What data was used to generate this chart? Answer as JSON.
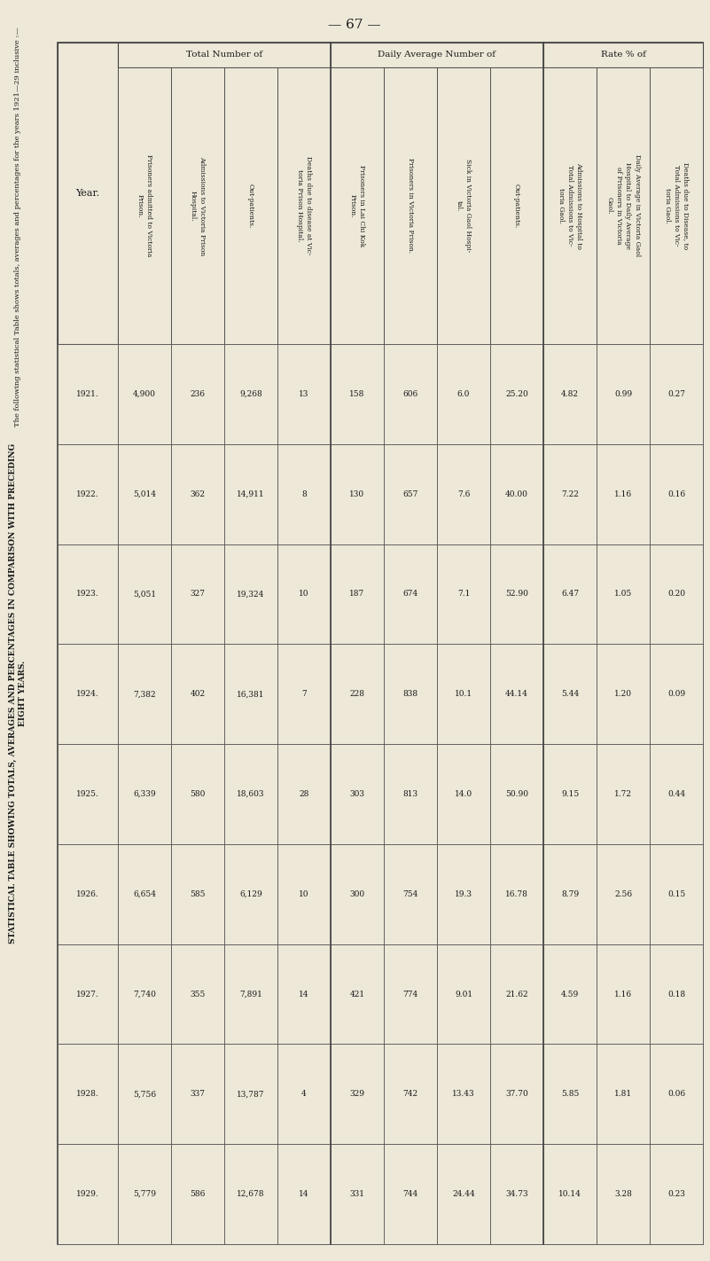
{
  "page_number": "— 67 —",
  "left_label_top": "The following statistical Table shows totals, averages and percentages for the years 1921—29 inclusive :—",
  "left_label_bottom": "STATISTICAL TABLE SHOWING TOTALS, AVERAGES AND PERCENTAGES IN COMPARISON WITH PRECEDING\nEIGHT YEARS.",
  "years": [
    "1921.",
    "1922.",
    "1923.",
    "1924.",
    "1925.",
    "1926.",
    "1927.",
    "1928.",
    "1929."
  ],
  "col_groups": [
    {
      "group_label": "Total Number of",
      "columns": [
        {
          "header": "Prisoners admitted to Victoria\nPrison.",
          "values": [
            "4,900",
            "5,014",
            "5,051",
            "7,382",
            "6,339",
            "6,654",
            "7,740",
            "5,756",
            "5,779"
          ]
        },
        {
          "header": "Admissions to Victoria Prison\nHospital.",
          "values": [
            "236",
            "362",
            "327",
            "402",
            "580",
            "585",
            "355",
            "337",
            "586"
          ]
        },
        {
          "header": "Out-patients.",
          "values": [
            "9,268",
            "14,911",
            "19,324",
            "16,381",
            "18,603",
            "6,129",
            "7,891",
            "13,787",
            "12,678"
          ]
        },
        {
          "header": "Deaths due to disease at Vic-\ntoria Prison Hospital.",
          "values": [
            "13",
            "8",
            "10",
            "7",
            "28",
            "10",
            "14",
            "4",
            "14"
          ]
        }
      ]
    },
    {
      "group_label": "Daily Average Number of",
      "columns": [
        {
          "header": "Prisoners in Lai Chi Kok\nPrison.",
          "values": [
            "158",
            "130",
            "187",
            "228",
            "303",
            "300",
            "421",
            "329",
            "331"
          ]
        },
        {
          "header": "Prisoners in Victoria Prison.",
          "values": [
            "606",
            "657",
            "674",
            "838",
            "813",
            "754",
            "774",
            "742",
            "744"
          ]
        },
        {
          "header": "Sick in Victoria Gaol Hospi-\ntal.",
          "values": [
            "6.0",
            "7.6",
            "7.1",
            "10.1",
            "14.0",
            "19.3",
            "9.01",
            "13.43",
            "24.44"
          ]
        },
        {
          "header": "Out-patients.",
          "values": [
            "25.20",
            "40.00",
            "52.90",
            "44.14",
            "50.90",
            "16.78",
            "21.62",
            "37.70",
            "34.73"
          ]
        }
      ]
    },
    {
      "group_label": "Rate % of",
      "columns": [
        {
          "header": "Admissions to Hospital to\nTotal Admissions to Vic-\ntoria Gaol.",
          "values": [
            "4.82",
            "7.22",
            "6.47",
            "5.44",
            "9.15",
            "8.79",
            "4.59",
            "5.85",
            "10.14"
          ]
        },
        {
          "header": "Daily Average in Victoria Gaol\nHospital to Daily Average\nof Prisoners in Victoria\nGaol.",
          "values": [
            "0.99",
            "1.16",
            "1.05",
            "1.20",
            "1.72",
            "2.56",
            "1.16",
            "1.81",
            "3.28"
          ]
        },
        {
          "header": "Deaths due to Disease, to\nTotal Admissions to Vic-\ntoria Gaol.",
          "values": [
            "0.27",
            "0.16",
            "0.20",
            "0.09",
            "0.44",
            "0.15",
            "0.18",
            "0.06",
            "0.23"
          ]
        }
      ]
    }
  ],
  "bg_color": "#ede8d8",
  "text_color": "#1a1a1a",
  "line_color": "#444444"
}
